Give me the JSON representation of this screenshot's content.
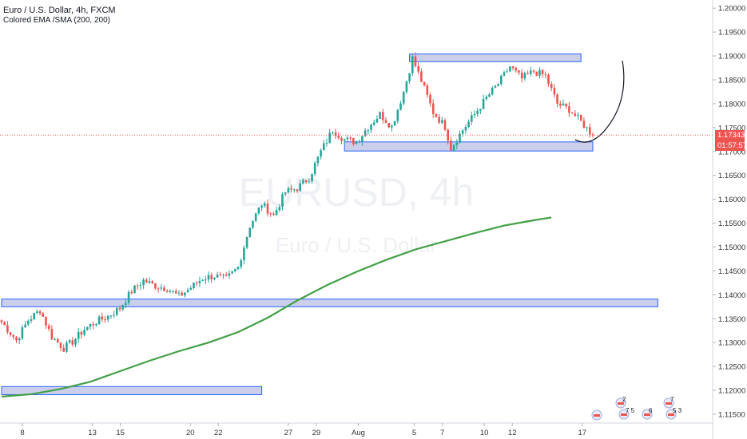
{
  "header": {
    "title": "Euro / U.S. Dollar, 4h, FXCM",
    "indicator": "Colored EMA /SMA (200, 200)"
  },
  "watermark": {
    "symbol": "EURUSD, 4h",
    "name": "Euro / U.S. Dollar"
  },
  "current_price": "1.17343",
  "countdown": "01:57:57",
  "colors": {
    "up": "#26a69a",
    "down": "#ef5350",
    "ema": "#43a047",
    "zone_fill": "#c5cae9",
    "zone_border": "#2962ff",
    "price_line": "#ef5350",
    "axis_text": "#333333"
  },
  "chart_data": {
    "type": "candlestick",
    "y_ticks": [
      "1.20000",
      "1.19500",
      "1.19000",
      "1.18500",
      "1.18000",
      "1.17500",
      "1.17000",
      "1.16500",
      "1.16000",
      "1.15500",
      "1.15000",
      "1.14500",
      "1.14000",
      "1.13500",
      "1.13000",
      "1.12500",
      "1.12000",
      "1.11500"
    ],
    "ylim": [
      1.1135,
      1.2012
    ],
    "x_ticks": [
      {
        "label": "8",
        "day": 8
      },
      {
        "label": "13",
        "day": 13
      },
      {
        "label": "15",
        "day": 15
      },
      {
        "label": "20",
        "day": 20
      },
      {
        "label": "22",
        "day": 22
      },
      {
        "label": "27",
        "day": 27
      },
      {
        "label": "29",
        "day": 29
      },
      {
        "label": "Aug",
        "day": 32
      },
      {
        "label": "5",
        "day": 36
      },
      {
        "label": "7",
        "day": 38
      },
      {
        "label": "10",
        "day": 41
      },
      {
        "label": "12",
        "day": 43
      },
      {
        "label": "17",
        "day": 48
      }
    ],
    "candle_anchors": [
      [
        0,
        1.1343
      ],
      [
        5,
        1.1305
      ],
      [
        9,
        1.1347
      ],
      [
        13,
        1.1368
      ],
      [
        17,
        1.1312
      ],
      [
        21,
        1.1288
      ],
      [
        24,
        1.1302
      ],
      [
        28,
        1.1328
      ],
      [
        32,
        1.1344
      ],
      [
        36,
        1.1355
      ],
      [
        40,
        1.1372
      ],
      [
        44,
        1.1408
      ],
      [
        48,
        1.143
      ],
      [
        52,
        1.1419
      ],
      [
        56,
        1.1413
      ],
      [
        60,
        1.1397
      ],
      [
        64,
        1.1415
      ],
      [
        68,
        1.1435
      ],
      [
        72,
        1.144
      ],
      [
        76,
        1.1433
      ],
      [
        80,
        1.1458
      ],
      [
        84,
        1.1545
      ],
      [
        88,
        1.159
      ],
      [
        92,
        1.1566
      ],
      [
        96,
        1.1615
      ],
      [
        100,
        1.1623
      ],
      [
        104,
        1.1645
      ],
      [
        108,
        1.17
      ],
      [
        112,
        1.1745
      ],
      [
        116,
        1.1725
      ],
      [
        120,
        1.172
      ],
      [
        124,
        1.1752
      ],
      [
        128,
        1.1778
      ],
      [
        132,
        1.1752
      ],
      [
        136,
        1.1825
      ],
      [
        139,
        1.1895
      ],
      [
        142,
        1.1848
      ],
      [
        146,
        1.1782
      ],
      [
        150,
        1.1752
      ],
      [
        152,
        1.1707
      ],
      [
        156,
        1.1745
      ],
      [
        160,
        1.1778
      ],
      [
        164,
        1.1812
      ],
      [
        168,
        1.1842
      ],
      [
        172,
        1.1878
      ],
      [
        176,
        1.1852
      ],
      [
        180,
        1.1868
      ],
      [
        184,
        1.1858
      ],
      [
        188,
        1.18
      ],
      [
        192,
        1.1788
      ],
      [
        196,
        1.1762
      ],
      [
        200,
        1.1734
      ]
    ],
    "ema_200": [
      [
        0,
        1.1187
      ],
      [
        10,
        1.1192
      ],
      [
        20,
        1.1203
      ],
      [
        30,
        1.1218
      ],
      [
        40,
        1.124
      ],
      [
        50,
        1.1262
      ],
      [
        60,
        1.1282
      ],
      [
        70,
        1.13
      ],
      [
        80,
        1.1322
      ],
      [
        90,
        1.1352
      ],
      [
        100,
        1.1388
      ],
      [
        110,
        1.142
      ],
      [
        120,
        1.1448
      ],
      [
        130,
        1.1473
      ],
      [
        140,
        1.1495
      ],
      [
        150,
        1.1512
      ],
      [
        160,
        1.1529
      ],
      [
        170,
        1.1545
      ],
      [
        180,
        1.1556
      ],
      [
        186,
        1.1562
      ]
    ],
    "zones": [
      {
        "from": 138,
        "to": 196,
        "top": 1.1904,
        "bottom": 1.1888
      },
      {
        "from": 116,
        "to": 200,
        "top": 1.172,
        "bottom": 1.1701
      },
      {
        "from": 0,
        "to": 222,
        "top": 1.1391,
        "bottom": 1.1375
      },
      {
        "from": 0,
        "to": 88,
        "top": 1.1208,
        "bottom": 1.1191
      }
    ],
    "projection": [
      [
        194,
        1.1725
      ],
      [
        200,
        1.1718
      ],
      [
        206,
        1.176
      ],
      [
        210,
        1.189
      ]
    ],
    "last_candle": 200,
    "events": [
      {
        "candle": 195,
        "text": ""
      },
      {
        "candle": 203,
        "text": "2"
      },
      {
        "candle": 203,
        "text": "7 5"
      },
      {
        "candle": 211,
        "text": "6"
      },
      {
        "candle": 220,
        "text": "7"
      },
      {
        "candle": 220,
        "text": "5 3"
      }
    ]
  }
}
